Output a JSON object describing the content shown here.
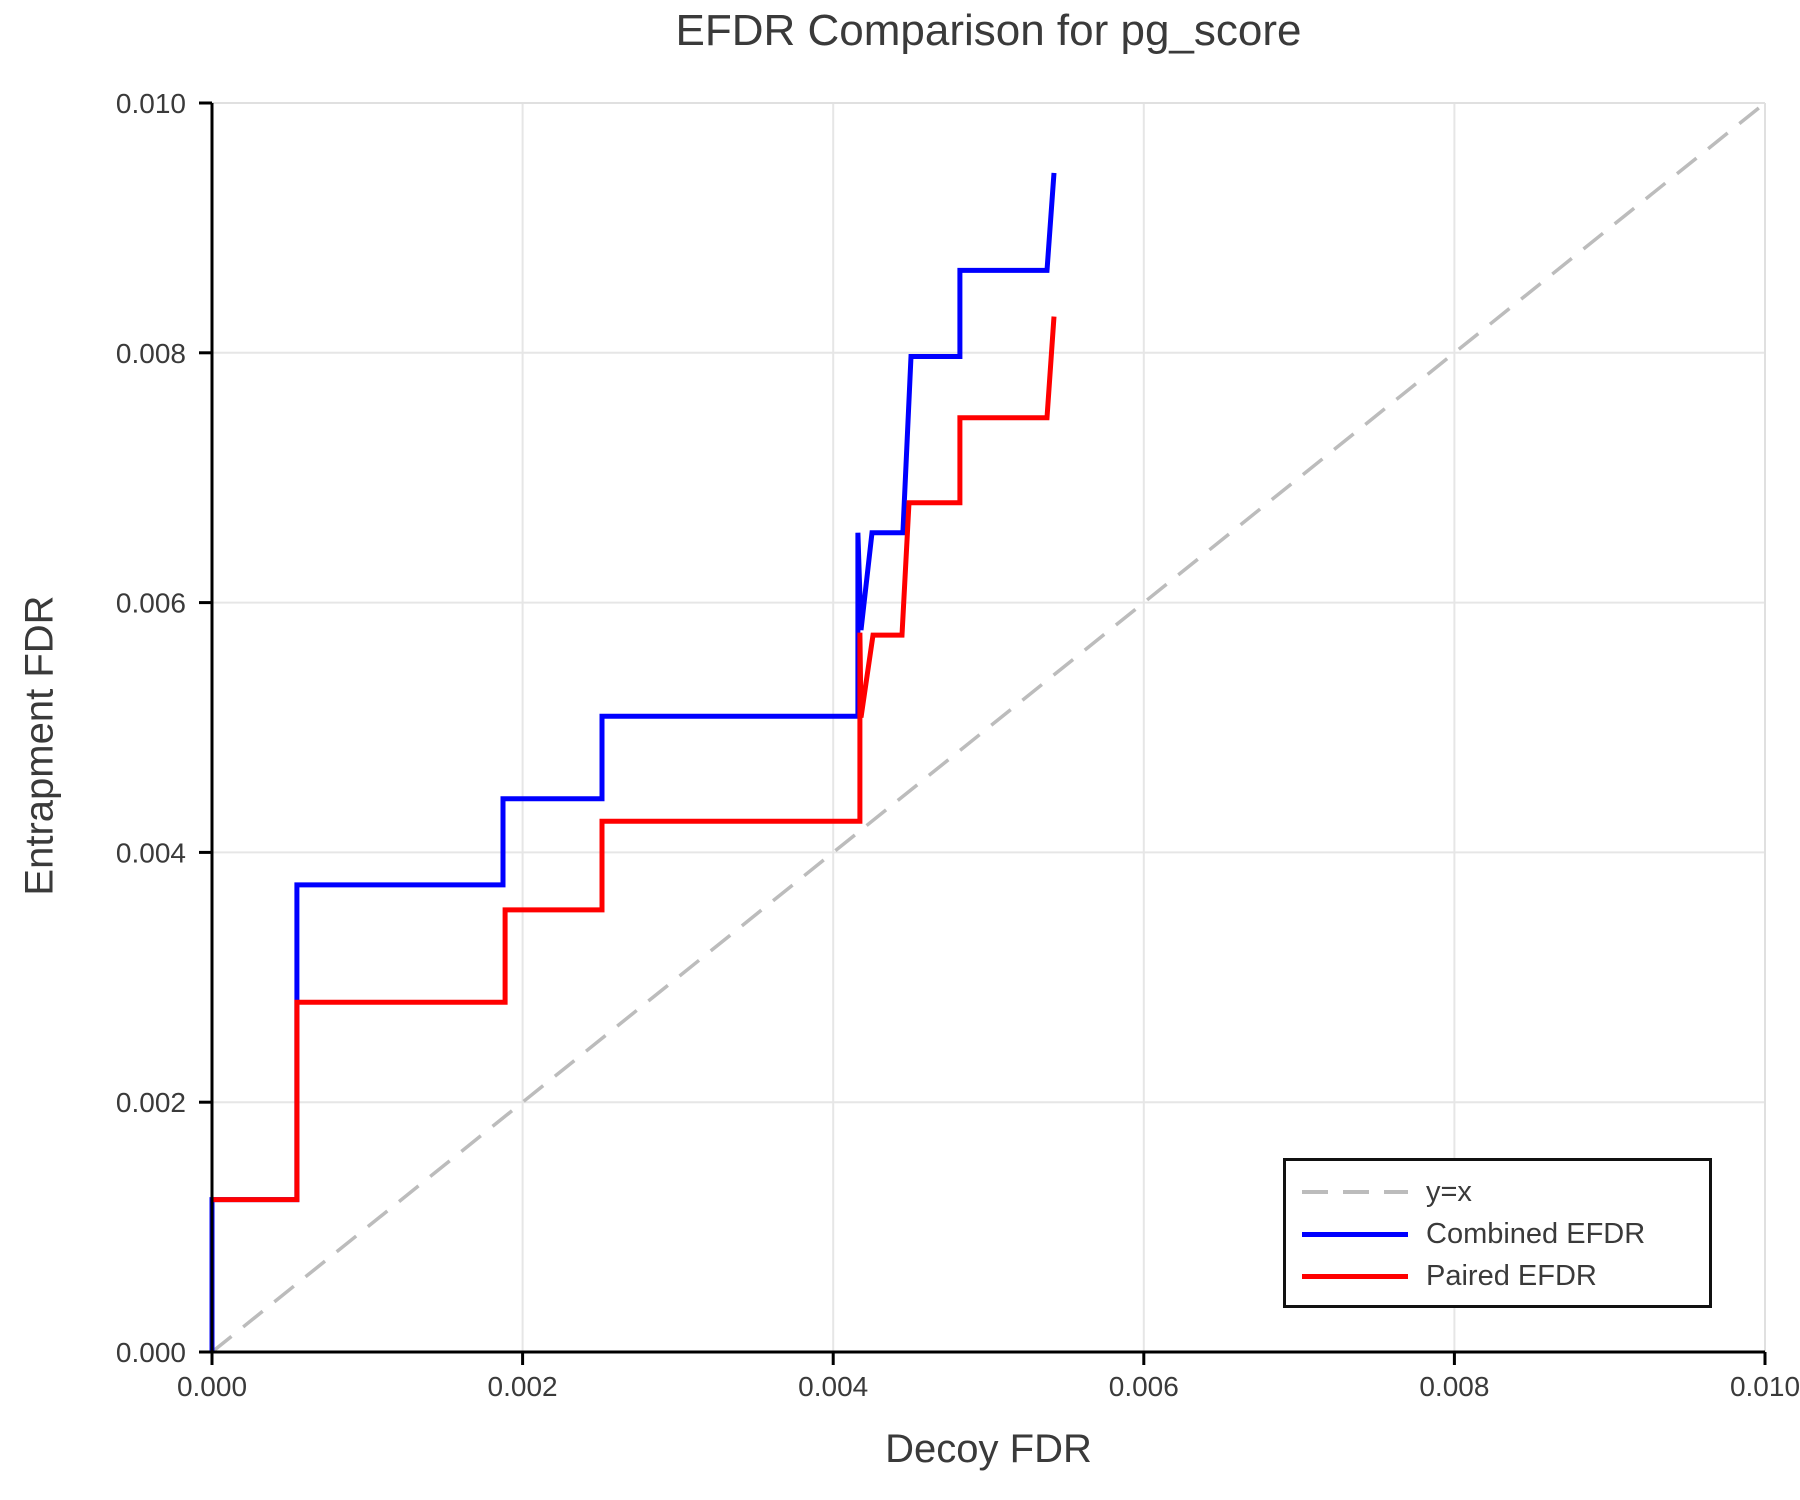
{
  "title": "EFDR Comparison for pg_score",
  "axes": {
    "x_label": "Decoy FDR",
    "y_label": "Entrapment FDR"
  },
  "legend": {
    "items": [
      {
        "label": "y=x",
        "color": "#bcbcbc",
        "style": "dashed"
      },
      {
        "label": "Combined EFDR",
        "color": "#0000ff",
        "style": "solid"
      },
      {
        "label": "Paired EFDR",
        "color": "#ff0000",
        "style": "solid"
      }
    ]
  },
  "chart_data": {
    "type": "line",
    "title": "EFDR Comparison for pg_score",
    "xlabel": "Decoy FDR",
    "ylabel": "Entrapment FDR",
    "xlim": [
      0.0,
      0.01
    ],
    "ylim": [
      0.0,
      0.01
    ],
    "grid": true,
    "x_ticks": [
      0.0,
      0.002,
      0.004,
      0.006,
      0.008,
      0.01
    ],
    "x_tick_labels": [
      "0.000",
      "0.002",
      "0.004",
      "0.006",
      "0.008",
      "0.010"
    ],
    "y_ticks": [
      0.0,
      0.002,
      0.004,
      0.006,
      0.008,
      0.01
    ],
    "y_tick_labels": [
      "0.000",
      "0.002",
      "0.004",
      "0.006",
      "0.008",
      "0.010"
    ],
    "legend_position": "lower right",
    "reference_line": {
      "name": "y=x",
      "from": [
        0.0,
        0.0
      ],
      "to": [
        0.01,
        0.01
      ],
      "color": "#bcbcbc",
      "style": "dashed"
    },
    "series": [
      {
        "name": "Combined EFDR",
        "color": "#0000ff",
        "points": [
          [
            0.0,
            0.0
          ],
          [
            0.0,
            0.00122
          ],
          [
            0.000547,
            0.00122
          ],
          [
            0.000547,
            0.00374
          ],
          [
            0.001874,
            0.00374
          ],
          [
            0.001874,
            0.00443
          ],
          [
            0.002511,
            0.00443
          ],
          [
            0.002511,
            0.00509
          ],
          [
            0.004159,
            0.00509
          ],
          [
            0.004159,
            0.00656
          ],
          [
            0.004179,
            0.00578
          ],
          [
            0.00425,
            0.00656
          ],
          [
            0.004449,
            0.00656
          ],
          [
            0.004501,
            0.00797
          ],
          [
            0.004816,
            0.00797
          ],
          [
            0.004816,
            0.00866
          ],
          [
            0.005377,
            0.00866
          ],
          [
            0.005422,
            0.00944
          ]
        ]
      },
      {
        "name": "Paired EFDR",
        "color": "#ff0000",
        "points": [
          [
            0.0,
            0.00122
          ],
          [
            0.000547,
            0.00122
          ],
          [
            0.000547,
            0.0028
          ],
          [
            0.001887,
            0.0028
          ],
          [
            0.001887,
            0.00354
          ],
          [
            0.002511,
            0.00354
          ],
          [
            0.002511,
            0.00425
          ],
          [
            0.004172,
            0.00425
          ],
          [
            0.004172,
            0.00576
          ],
          [
            0.004179,
            0.00508
          ],
          [
            0.004256,
            0.00574
          ],
          [
            0.004443,
            0.00574
          ],
          [
            0.004488,
            0.0068
          ],
          [
            0.004816,
            0.0068
          ],
          [
            0.004816,
            0.00748
          ],
          [
            0.005377,
            0.00748
          ],
          [
            0.005422,
            0.00829
          ]
        ]
      }
    ]
  }
}
